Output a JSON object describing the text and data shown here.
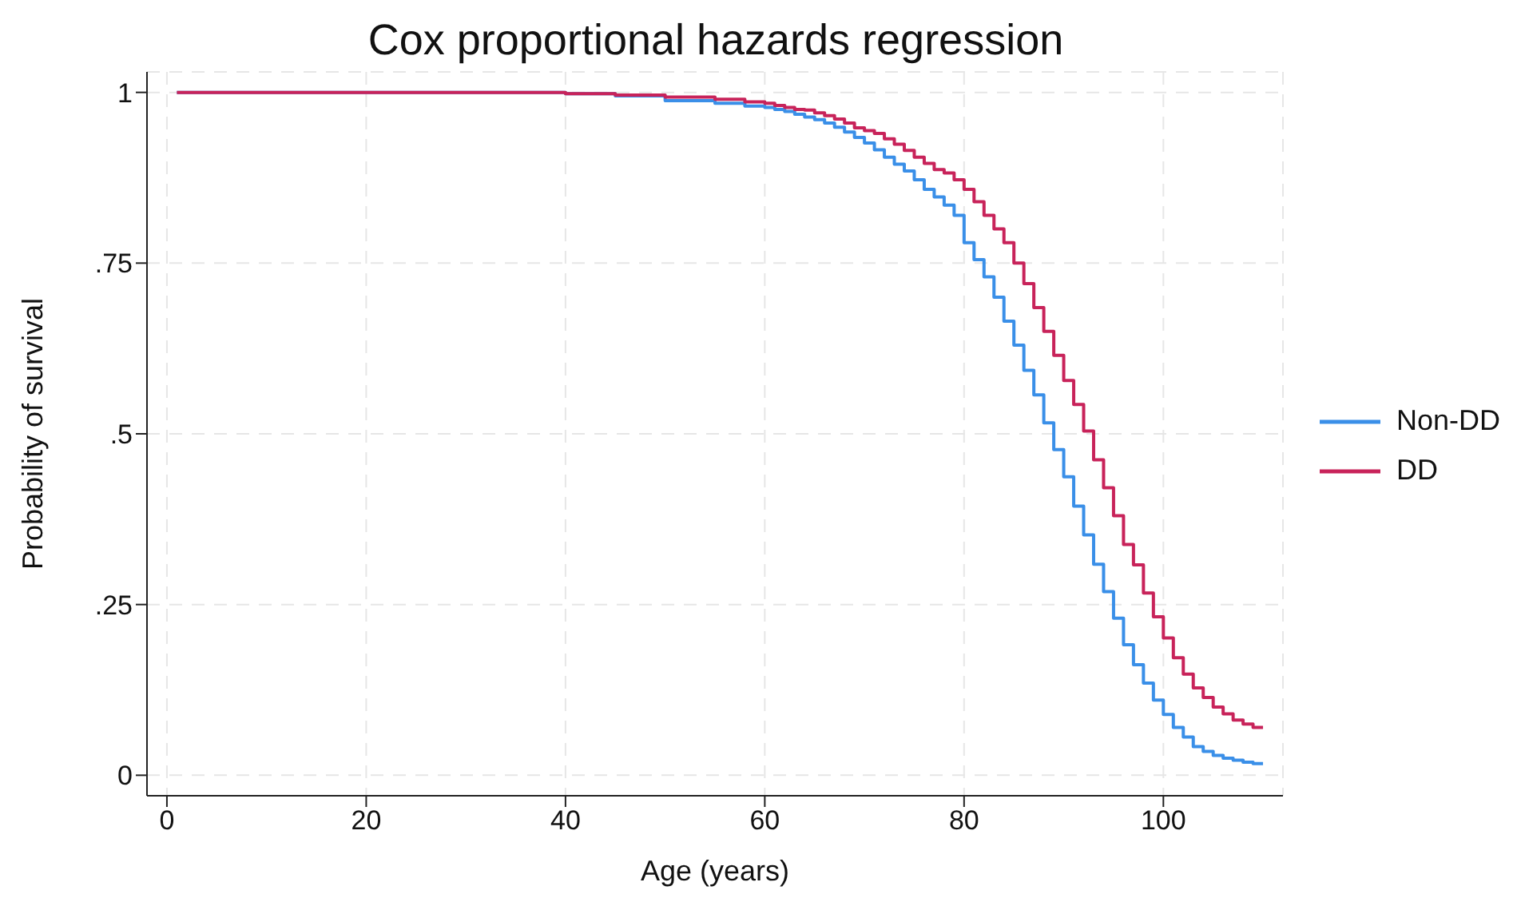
{
  "chart_data": {
    "type": "step",
    "title": "Cox proportional hazards regression",
    "xlabel": "Age (years)",
    "ylabel": "Probability of survival",
    "x": [
      1,
      40,
      45,
      50,
      55,
      58,
      60,
      61,
      62,
      63,
      64,
      65,
      66,
      67,
      68,
      69,
      70,
      71,
      72,
      73,
      74,
      75,
      76,
      77,
      78,
      79,
      80,
      81,
      82,
      83,
      84,
      85,
      86,
      87,
      88,
      89,
      90,
      91,
      92,
      93,
      94,
      95,
      96,
      97,
      98,
      99,
      100,
      101,
      102,
      103,
      104,
      105,
      106,
      107,
      108,
      109,
      110
    ],
    "series": [
      {
        "name": "Non-DD",
        "color": "#3a8fe8",
        "values": [
          1,
          0.998,
          0.995,
          0.988,
          0.984,
          0.98,
          0.978,
          0.975,
          0.972,
          0.968,
          0.964,
          0.96,
          0.955,
          0.949,
          0.942,
          0.934,
          0.926,
          0.916,
          0.905,
          0.895,
          0.885,
          0.872,
          0.858,
          0.847,
          0.835,
          0.82,
          0.78,
          0.755,
          0.73,
          0.7,
          0.665,
          0.63,
          0.593,
          0.557,
          0.516,
          0.477,
          0.437,
          0.394,
          0.352,
          0.309,
          0.269,
          0.23,
          0.191,
          0.162,
          0.135,
          0.11,
          0.089,
          0.07,
          0.056,
          0.042,
          0.035,
          0.029,
          0.025,
          0.022,
          0.019,
          0.017,
          0.017
        ]
      },
      {
        "name": "DD",
        "color": "#c8235a",
        "values": [
          1,
          0.998,
          0.996,
          0.993,
          0.99,
          0.986,
          0.984,
          0.981,
          0.978,
          0.975,
          0.974,
          0.97,
          0.966,
          0.961,
          0.955,
          0.948,
          0.944,
          0.94,
          0.932,
          0.924,
          0.915,
          0.905,
          0.896,
          0.887,
          0.882,
          0.872,
          0.858,
          0.84,
          0.82,
          0.8,
          0.78,
          0.75,
          0.72,
          0.685,
          0.65,
          0.615,
          0.578,
          0.543,
          0.504,
          0.462,
          0.421,
          0.38,
          0.338,
          0.308,
          0.267,
          0.232,
          0.201,
          0.172,
          0.148,
          0.128,
          0.114,
          0.1,
          0.09,
          0.081,
          0.075,
          0.07,
          0.07
        ]
      }
    ],
    "xlim": [
      -2,
      112
    ],
    "xticks": [
      0,
      20,
      40,
      60,
      80,
      100
    ],
    "ylim": [
      -0.03,
      1.03
    ],
    "yticks": [
      {
        "value": 0,
        "label": "0"
      },
      {
        "value": 0.25,
        "label": ".25"
      },
      {
        "value": 0.5,
        "label": ".5"
      },
      {
        "value": 0.75,
        "label": ".75"
      },
      {
        "value": 1,
        "label": "1"
      }
    ],
    "grid": true,
    "legend": "right",
    "line_style": "solid",
    "marker": "none"
  }
}
